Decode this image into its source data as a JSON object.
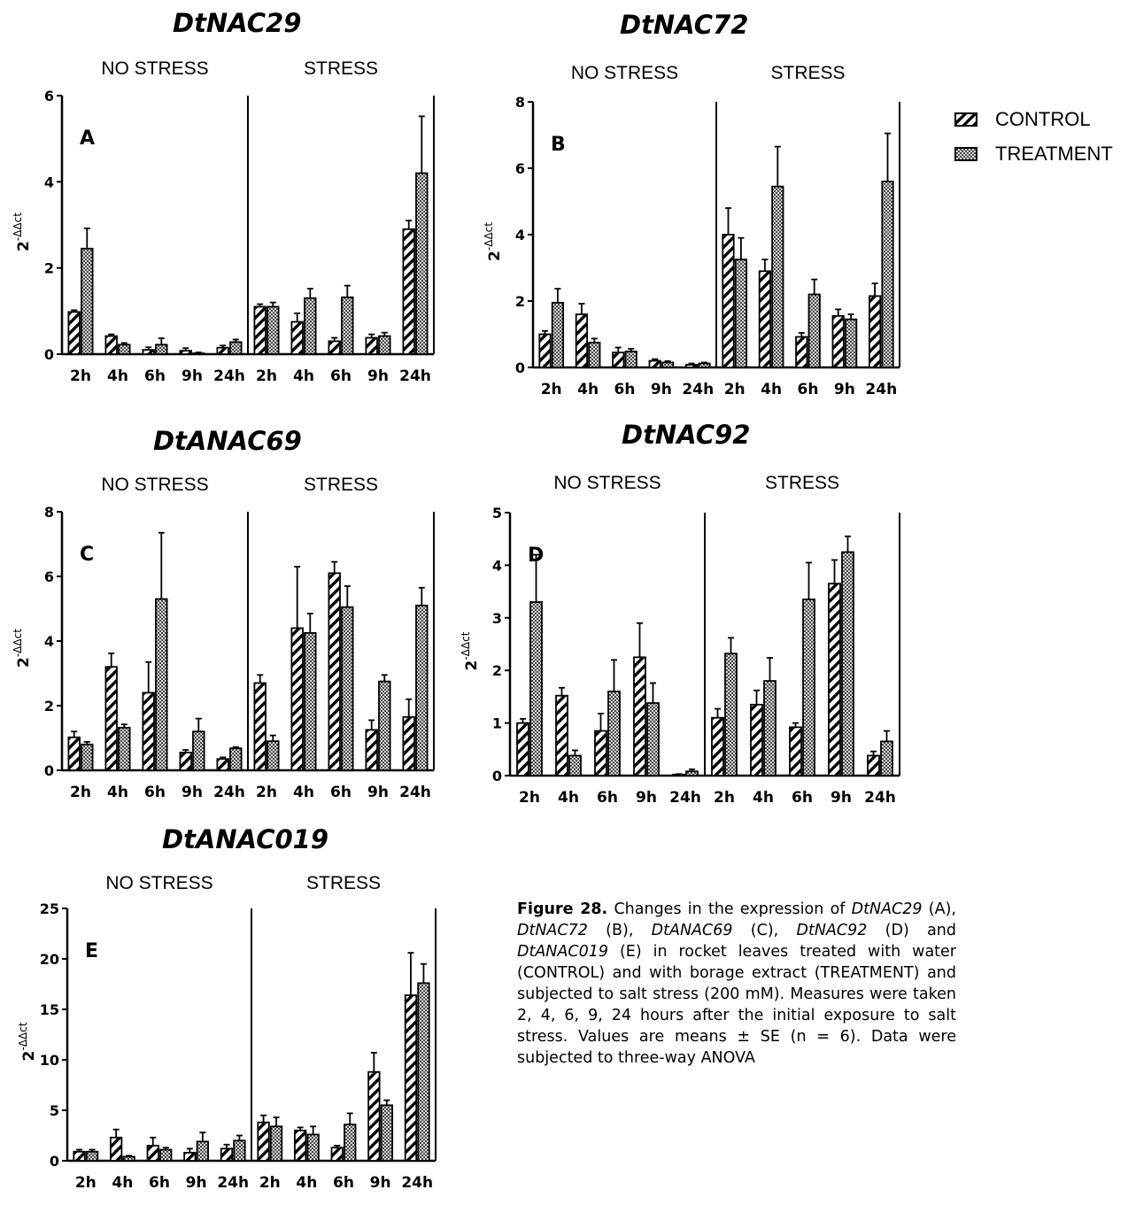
{
  "legend": {
    "control_label": "CONTROL",
    "treatment_label": "TREATMENT"
  },
  "caption": {
    "label": "Figure 28.",
    "segments": [
      {
        "text": " Changes in the expression of ",
        "italic": false
      },
      {
        "text": "DtNAC29",
        "italic": true
      },
      {
        "text": " (A), ",
        "italic": false
      },
      {
        "text": "DtNAC72",
        "italic": true
      },
      {
        "text": " (B), ",
        "italic": false
      },
      {
        "text": "DtANAC69",
        "italic": true
      },
      {
        "text": " (C), ",
        "italic": false
      },
      {
        "text": "DtNAC92",
        "italic": true
      },
      {
        "text": " (D) and ",
        "italic": false
      },
      {
        "text": "DtANAC019",
        "italic": true
      },
      {
        "text": " (E) in rocket leaves treated with water (CONTROL) and with borage extract (TREATMENT) and subjected to salt stress (200 mM). Measures were taken 2, 4, 6, 9, 24 hours after the initial exposure to salt stress. Values are means ± SE (n = 6). Data were subjected to three-way ANOVA",
        "italic": false
      }
    ]
  },
  "chart_data": [
    {
      "type": "bar",
      "panel": "A",
      "title": "DtNAC29",
      "groups": [
        "NO STRESS",
        "STRESS"
      ],
      "categories": [
        "2h",
        "4h",
        "6h",
        "9h",
        "24h",
        "2h",
        "4h",
        "6h",
        "9h",
        "24h"
      ],
      "ylabel": "2-ΔΔct",
      "ylim": [
        0,
        6
      ],
      "yticks": [
        0,
        2,
        4,
        6
      ],
      "series": [
        {
          "name": "CONTROL",
          "values": [
            0.98,
            0.42,
            0.1,
            0.08,
            0.15,
            1.1,
            0.75,
            0.3,
            0.38,
            2.9
          ],
          "errors": [
            0.04,
            0.04,
            0.06,
            0.06,
            0.05,
            0.06,
            0.2,
            0.08,
            0.08,
            0.2
          ]
        },
        {
          "name": "TREATMENT",
          "values": [
            2.45,
            0.22,
            0.22,
            0.02,
            0.28,
            1.1,
            1.3,
            1.32,
            0.42,
            4.2
          ],
          "errors": [
            0.47,
            0.04,
            0.15,
            0.02,
            0.06,
            0.1,
            0.22,
            0.27,
            0.08,
            1.32
          ]
        }
      ],
      "legend": "top-right"
    },
    {
      "type": "bar",
      "panel": "B",
      "title": "DtNAC72",
      "groups": [
        "NO STRESS",
        "STRESS"
      ],
      "categories": [
        "2h",
        "4h",
        "6h",
        "9h",
        "24h",
        "2h",
        "4h",
        "6h",
        "9h",
        "24h"
      ],
      "ylabel": "2-ΔΔct",
      "ylim": [
        0,
        8
      ],
      "yticks": [
        0,
        2,
        4,
        6,
        8
      ],
      "series": [
        {
          "name": "CONTROL",
          "values": [
            1.0,
            1.6,
            0.45,
            0.2,
            0.08,
            4.0,
            2.9,
            0.92,
            1.55,
            2.15
          ],
          "errors": [
            0.1,
            0.32,
            0.15,
            0.05,
            0.04,
            0.8,
            0.35,
            0.12,
            0.2,
            0.38
          ]
        },
        {
          "name": "TREATMENT",
          "values": [
            1.95,
            0.75,
            0.48,
            0.15,
            0.12,
            3.25,
            5.45,
            2.2,
            1.45,
            5.6
          ],
          "errors": [
            0.42,
            0.12,
            0.08,
            0.04,
            0.03,
            0.65,
            1.2,
            0.45,
            0.15,
            1.45
          ]
        }
      ]
    },
    {
      "type": "bar",
      "panel": "C",
      "title": "DtANAC69",
      "groups": [
        "NO STRESS",
        "STRESS"
      ],
      "categories": [
        "2h",
        "4h",
        "6h",
        "9h",
        "24h",
        "2h",
        "4h",
        "6h",
        "9h",
        "24h"
      ],
      "ylabel": "2-ΔΔct",
      "ylim": [
        0,
        8
      ],
      "yticks": [
        0,
        2,
        4,
        6,
        8
      ],
      "series": [
        {
          "name": "CONTROL",
          "values": [
            1.02,
            3.2,
            2.4,
            0.55,
            0.35,
            2.7,
            4.4,
            6.1,
            1.25,
            1.65
          ],
          "errors": [
            0.18,
            0.42,
            0.95,
            0.08,
            0.05,
            0.25,
            1.9,
            0.35,
            0.3,
            0.55
          ]
        },
        {
          "name": "TREATMENT",
          "values": [
            0.8,
            1.32,
            5.3,
            1.2,
            0.68,
            0.9,
            4.25,
            5.05,
            2.75,
            5.1
          ],
          "errors": [
            0.08,
            0.1,
            2.05,
            0.4,
            0.04,
            0.18,
            0.6,
            0.65,
            0.2,
            0.55
          ]
        }
      ]
    },
    {
      "type": "bar",
      "panel": "D",
      "title": "DtNAC92",
      "groups": [
        "NO STRESS",
        "STRESS"
      ],
      "categories": [
        "2h",
        "4h",
        "6h",
        "9h",
        "24h",
        "2h",
        "4h",
        "6h",
        "9h",
        "24h"
      ],
      "ylabel": "2-ΔΔct",
      "ylim": [
        0,
        5
      ],
      "yticks": [
        0,
        1,
        2,
        3,
        4,
        5
      ],
      "series": [
        {
          "name": "CONTROL",
          "values": [
            1.0,
            1.52,
            0.85,
            2.25,
            0.02,
            1.1,
            1.35,
            0.92,
            3.65,
            0.38
          ],
          "errors": [
            0.08,
            0.15,
            0.33,
            0.65,
            0.01,
            0.17,
            0.27,
            0.08,
            0.45,
            0.08
          ]
        },
        {
          "name": "TREATMENT",
          "values": [
            3.3,
            0.38,
            1.6,
            1.38,
            0.08,
            2.32,
            1.8,
            3.35,
            4.25,
            0.65
          ],
          "errors": [
            0.9,
            0.1,
            0.6,
            0.38,
            0.04,
            0.3,
            0.44,
            0.7,
            0.3,
            0.2
          ]
        }
      ]
    },
    {
      "type": "bar",
      "panel": "E",
      "title": "DtANAC019",
      "groups": [
        "NO STRESS",
        "STRESS"
      ],
      "categories": [
        "2h",
        "4h",
        "6h",
        "9h",
        "24h",
        "2h",
        "4h",
        "6h",
        "9h",
        "24h"
      ],
      "ylabel": "2-ΔΔct",
      "ylim": [
        0,
        25
      ],
      "yticks": [
        0,
        5,
        10,
        15,
        20,
        25
      ],
      "series": [
        {
          "name": "CONTROL",
          "values": [
            0.9,
            2.3,
            1.5,
            0.8,
            1.2,
            3.8,
            3.0,
            1.3,
            8.8,
            16.4
          ],
          "errors": [
            0.2,
            0.8,
            0.8,
            0.4,
            0.4,
            0.7,
            0.3,
            0.2,
            1.9,
            4.2
          ]
        },
        {
          "name": "TREATMENT",
          "values": [
            0.9,
            0.4,
            1.1,
            1.9,
            2.0,
            3.4,
            2.6,
            3.6,
            5.5,
            17.6
          ],
          "errors": [
            0.2,
            0.1,
            0.2,
            0.9,
            0.5,
            0.9,
            0.8,
            1.1,
            0.5,
            1.9
          ]
        }
      ]
    }
  ]
}
